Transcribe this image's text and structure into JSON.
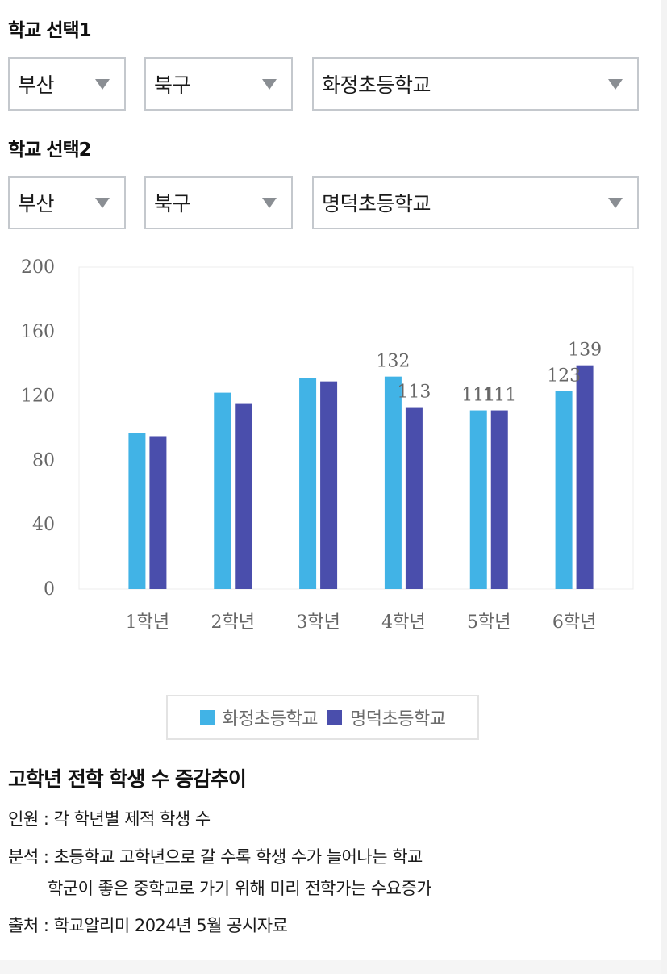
{
  "selector1": {
    "title": "학교 선택1",
    "region": "부산",
    "district": "북구",
    "school": "화정초등학교"
  },
  "selector2": {
    "title": "학교 선택2",
    "region": "부산",
    "district": "북구",
    "school": "명덕초등학교"
  },
  "colors": {
    "series1": "#41b3e6",
    "series2": "#4a4eac",
    "axis_text": "#666666",
    "grid": "#ececec"
  },
  "icons": {
    "dropdown": "triangle-down-icon",
    "legend_marker": "square-swatch-icon"
  },
  "chart_data": {
    "type": "bar",
    "categories": [
      "1학년",
      "2학년",
      "3학년",
      "4학년",
      "5학년",
      "6학년"
    ],
    "series": [
      {
        "name": "화정초등학교",
        "values": [
          97,
          122,
          131,
          132,
          111,
          123
        ]
      },
      {
        "name": "명덕초등학교",
        "values": [
          95,
          115,
          129,
          113,
          111,
          139
        ]
      }
    ],
    "data_labels": [
      {
        "series": 0,
        "index": 3,
        "text": "132"
      },
      {
        "series": 1,
        "index": 3,
        "text": "113"
      },
      {
        "series": 0,
        "index": 4,
        "text": "111"
      },
      {
        "series": 1,
        "index": 4,
        "text": "111"
      },
      {
        "series": 0,
        "index": 5,
        "text": "123"
      },
      {
        "series": 1,
        "index": 5,
        "text": "139"
      }
    ],
    "yticks": [
      "0",
      "40",
      "80",
      "120",
      "160",
      "200"
    ],
    "ylim": [
      0,
      200
    ],
    "grid": false,
    "legend_position": "bottom"
  },
  "legend": {
    "item1": "화정초등학교",
    "item2": "명덕초등학교"
  },
  "summary": {
    "heading": "고학년 전학 학생 수 증감추이",
    "line1": "인원 : 각 학년별 제적 학생 수",
    "line2": "분석 : 초등학교 고학년으로 갈 수록 학생 수가 늘어나는 학교",
    "line3": "학군이 좋은 중학교로 가기 위해 미리 전학가는 수요증가",
    "line4": "출처 : 학교알리미 2024년 5월 공시자료"
  }
}
